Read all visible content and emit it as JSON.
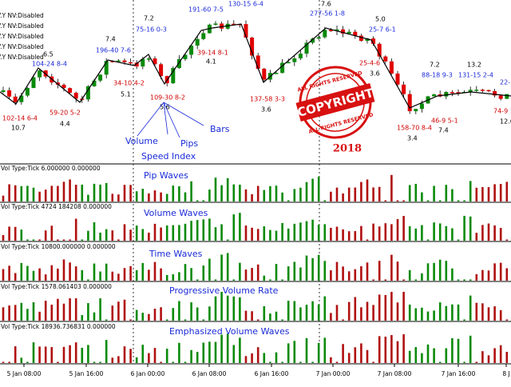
{
  "main_chart": {
    "status_lines": [
      "V.Y NV:Disabled",
      "V.Y NV:Disabled",
      "V.Y NV:Disabled",
      "V.Y NV:Disabled",
      "V.Y NV:Disabled"
    ],
    "wave_labels": [
      "102-14 6-4",
      "10.7",
      "104-24 8-4",
      "6.5",
      "59-20 5-2",
      "4.4",
      "7.4",
      "196-40 7-6",
      "34-10 4-2",
      "5.1",
      "7.2",
      "75-16 0-3",
      "109-30 8-2",
      "5.6",
      "191-60 7-5",
      "130-15 6-4",
      "39-14 8-1",
      "4.1",
      "137-58 3-3",
      "3.6",
      "7.6",
      "277-56 1-8",
      "5.0",
      "25-7 6-1",
      "25-4-6",
      "3.6",
      "158-70 8-4",
      "3.4",
      "7.2",
      "88-18 9-3",
      "46-9 5-1",
      "7.4",
      "13.2",
      "131-15 2-4",
      "22-",
      "74-9 1",
      "12.6"
    ],
    "annotations": [
      "Volume",
      "Speed Index",
      "Pips",
      "Bars"
    ],
    "stamp": {
      "top": "ALL RIGHTS RESERVED",
      "main": "COPYRIGHT",
      "bottom": "ALL RIGHTS RESERVED",
      "year": "2018"
    }
  },
  "panels": [
    {
      "header": "Vol Type:Tick 6.000000 0.000000",
      "title": "Pip Waves"
    },
    {
      "header": "Vol Type:Tick 4724 184208 0.000000",
      "title": "Volume Waves"
    },
    {
      "header": "Vol Type:Tick 10800.000000 0.000000",
      "title": "Time Waves"
    },
    {
      "header": "Vol Type:Tick 1578.061403 0.000000",
      "title": "Progressive Volume Rate"
    },
    {
      "header": "Vol Type:Tick 18936.736831 0.000000",
      "title": "Emphasized Volume Waves"
    }
  ],
  "time_axis": [
    "5 Jan 08:00",
    "5 Jan 16:00",
    "6 Jan 00:00",
    "6 Jan 08:00",
    "6 Jan 16:00",
    "7 Jan 00:00",
    "7 Jan 08:00",
    "7 Jan 16:00",
    "8 J"
  ]
}
